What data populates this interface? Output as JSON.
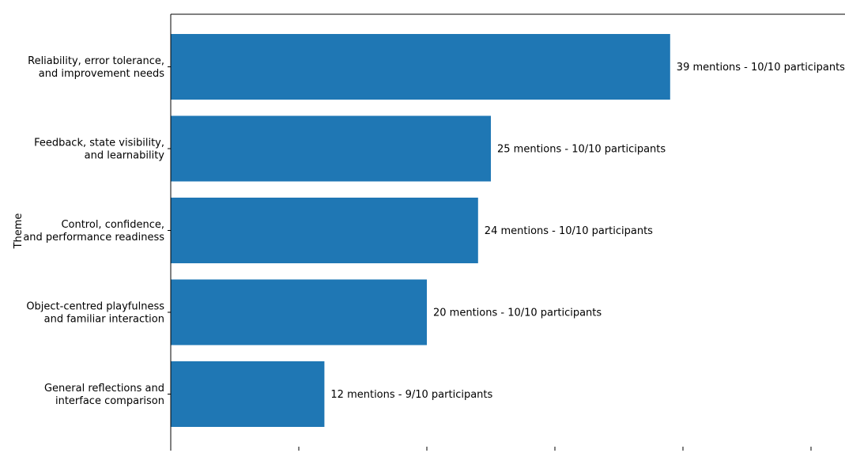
{
  "chart_data": {
    "type": "bar",
    "orientation": "horizontal",
    "ylabel": "Theme",
    "xlabel": "",
    "xlim": [
      0,
      52
    ],
    "x_ticks": [
      0,
      10,
      20,
      30,
      40,
      50
    ],
    "bar_color": "#1f77b4",
    "categories": [
      [
        "Reliability, error tolerance,",
        "and improvement needs"
      ],
      [
        "Feedback, state visibility,",
        "and learnability"
      ],
      [
        "Control, confidence,",
        "and performance readiness"
      ],
      [
        "Object-centred playfulness",
        "and familiar interaction"
      ],
      [
        "General reflections and",
        "interface comparison"
      ]
    ],
    "values": [
      39,
      25,
      24,
      20,
      12
    ],
    "bar_labels": [
      "39 mentions - 10/10 participants",
      "25 mentions - 10/10 participants",
      "24 mentions - 10/10 participants",
      "20 mentions - 10/10 participants",
      "12 mentions - 9/10 participants"
    ]
  }
}
